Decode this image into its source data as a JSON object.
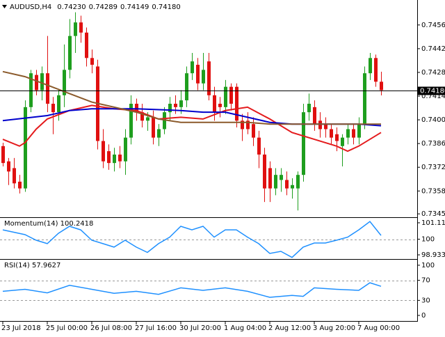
{
  "chart_data": [
    {
      "type": "candlestick",
      "title": "AUDUSD,H4",
      "quote": [
        {
          "value": 0.7423,
          "label": "0.74230"
        },
        {
          "value": 0.74289,
          "label": "0.74289"
        },
        {
          "value": 0.74149,
          "label": "0.74149"
        },
        {
          "value": 0.7418,
          "label": "0.74180"
        }
      ],
      "current": {
        "value": 0.7418,
        "label": "0.74180"
      },
      "xlim": [
        -0.5,
        74.5
      ],
      "xticks": [
        {
          "value": 0,
          "label": "23 Jul 2018"
        },
        {
          "value": 8,
          "label": "25 Jul 00:00"
        },
        {
          "value": 16,
          "label": "26 Jul 08:00"
        },
        {
          "value": 24,
          "label": "27 Jul 16:00"
        },
        {
          "value": 32,
          "label": "30 Jul 20:00"
        },
        {
          "value": 40,
          "label": "1 Aug 04:00"
        },
        {
          "value": 48,
          "label": "2 Aug 12:00"
        },
        {
          "value": 56,
          "label": "3 Aug 20:00"
        },
        {
          "value": 64,
          "label": "7 Aug 00:00"
        }
      ],
      "ylim": [
        0.7343,
        0.747
      ],
      "yticks": [
        0.74565,
        0.74425,
        0.74285,
        0.74145,
        0.74005,
        0.73865,
        0.73725,
        0.73585,
        {
          "value": 0.7345,
          "label": "0.73450"
        }
      ],
      "up_color": "#1e9e1e",
      "down_color": "#e01010",
      "open": [
        0.7385,
        0.7376,
        0.7372,
        0.7364,
        0.736,
        0.7408,
        0.7427,
        0.7418,
        0.7428,
        0.741,
        0.7405,
        0.7415,
        0.743,
        0.745,
        0.7458,
        0.7452,
        0.7437,
        0.7432,
        0.7388,
        0.7382,
        0.7375,
        0.738,
        0.7376,
        0.739,
        0.741,
        0.7405,
        0.74,
        0.7402,
        0.739,
        0.7395,
        0.7405,
        0.741,
        0.7408,
        0.7412,
        0.7428,
        0.7433,
        0.7422,
        0.7435,
        0.7415,
        0.741,
        0.7408,
        0.742,
        0.742,
        0.74,
        0.74,
        0.7398,
        0.739,
        0.738,
        0.7372,
        0.736,
        0.7365,
        0.7365,
        0.736,
        0.736,
        0.7368,
        0.7405,
        0.7408,
        0.74,
        0.7398,
        0.7395,
        0.7392,
        0.7385,
        0.739,
        0.7395,
        0.739,
        0.7398,
        0.7428,
        0.7437,
        0.7423
      ],
      "high": [
        0.7387,
        0.7378,
        0.7378,
        0.7368,
        0.7412,
        0.743,
        0.743,
        0.7432,
        0.745,
        0.7414,
        0.7418,
        0.7445,
        0.746,
        0.7464,
        0.7462,
        0.7455,
        0.7442,
        0.7436,
        0.7395,
        0.7386,
        0.7384,
        0.7385,
        0.7395,
        0.7415,
        0.7413,
        0.741,
        0.7405,
        0.7406,
        0.7398,
        0.7408,
        0.7414,
        0.7415,
        0.7418,
        0.7432,
        0.744,
        0.7437,
        0.744,
        0.744,
        0.742,
        0.7414,
        0.7424,
        0.7422,
        0.7422,
        0.7404,
        0.7405,
        0.7402,
        0.7394,
        0.7384,
        0.7376,
        0.7372,
        0.7372,
        0.737,
        0.7366,
        0.737,
        0.741,
        0.7416,
        0.7412,
        0.7405,
        0.7402,
        0.7398,
        0.7396,
        0.7392,
        0.7398,
        0.7398,
        0.7402,
        0.7432,
        0.744,
        0.7439,
        0.74289
      ],
      "low": [
        0.7373,
        0.7362,
        0.736,
        0.7357,
        0.7358,
        0.7405,
        0.7415,
        0.7412,
        0.7405,
        0.7392,
        0.74,
        0.7408,
        0.7425,
        0.744,
        0.7446,
        0.7432,
        0.7428,
        0.7383,
        0.7372,
        0.7371,
        0.737,
        0.7372,
        0.7368,
        0.7386,
        0.74,
        0.7396,
        0.7394,
        0.7386,
        0.7385,
        0.7392,
        0.74,
        0.7404,
        0.7404,
        0.7408,
        0.7424,
        0.7418,
        0.7418,
        0.7412,
        0.74,
        0.7402,
        0.7404,
        0.7406,
        0.7396,
        0.7388,
        0.7392,
        0.7385,
        0.7372,
        0.7352,
        0.7352,
        0.7356,
        0.7358,
        0.7356,
        0.7354,
        0.7347,
        0.7364,
        0.74,
        0.7394,
        0.739,
        0.739,
        0.7386,
        0.7382,
        0.7373,
        0.7386,
        0.7386,
        0.7386,
        0.7395,
        0.7424,
        0.742,
        0.74149
      ],
      "close": [
        0.7375,
        0.737,
        0.7363,
        0.736,
        0.7408,
        0.7428,
        0.7418,
        0.7428,
        0.741,
        0.7405,
        0.7415,
        0.743,
        0.745,
        0.7458,
        0.7452,
        0.7437,
        0.7433,
        0.7388,
        0.7376,
        0.7375,
        0.738,
        0.7376,
        0.739,
        0.741,
        0.7405,
        0.74,
        0.7402,
        0.739,
        0.7395,
        0.7405,
        0.741,
        0.7408,
        0.7412,
        0.7428,
        0.7435,
        0.7422,
        0.743,
        0.7415,
        0.7405,
        0.7408,
        0.742,
        0.741,
        0.74,
        0.7395,
        0.7395,
        0.739,
        0.738,
        0.736,
        0.736,
        0.7368,
        0.7368,
        0.736,
        0.7362,
        0.7368,
        0.7405,
        0.741,
        0.7398,
        0.7395,
        0.7395,
        0.739,
        0.7388,
        0.739,
        0.7395,
        0.739,
        0.7398,
        0.7428,
        0.7437,
        0.7423,
        0.7418
      ],
      "series": [
        {
          "color": "#e41a1c",
          "x": [
            0,
            3,
            4,
            6,
            8,
            12,
            16,
            20,
            24,
            28,
            32,
            36,
            40,
            44,
            48,
            52,
            56,
            60,
            62,
            64,
            68
          ],
          "values": [
            0.7389,
            0.7385,
            0.7387,
            0.7395,
            0.7401,
            0.7406,
            0.7409,
            0.7407,
            0.7406,
            0.7401,
            0.7402,
            0.7401,
            0.7406,
            0.7408,
            0.7401,
            0.7393,
            0.7389,
            0.7385,
            0.7382,
            0.7385,
            0.7393
          ]
        },
        {
          "color": "#0000cc",
          "x": [
            0,
            8,
            12,
            16,
            24,
            32,
            36,
            40,
            44,
            48,
            52,
            56,
            60,
            64,
            68
          ],
          "values": [
            0.74,
            0.7403,
            0.7406,
            0.7407,
            0.7407,
            0.7406,
            0.7405,
            0.7405,
            0.7402,
            0.7399,
            0.7398,
            0.7398,
            0.7398,
            0.7398,
            0.7397
          ]
        },
        {
          "color": "#8b5a2b",
          "x": [
            0,
            4,
            8,
            12,
            16,
            20,
            24,
            28,
            32,
            36,
            40,
            44,
            48,
            52,
            56,
            60,
            64,
            68
          ],
          "values": [
            0.7429,
            0.7426,
            0.7421,
            0.7416,
            0.7411,
            0.7408,
            0.7405,
            0.7401,
            0.7399,
            0.7399,
            0.7399,
            0.7399,
            0.7398,
            0.7398,
            0.7398,
            0.7398,
            0.7398,
            0.7398
          ]
        }
      ]
    },
    {
      "type": "line",
      "title": "Momentum(14) 100.2418",
      "xlim": [
        -0.5,
        74.5
      ],
      "ylim": [
        98.65,
        101.45
      ],
      "yticks": [
        101.1196,
        100,
        98.9338
      ],
      "levels": [
        100
      ],
      "series": [
        {
          "color": "#1e90ff",
          "x": [
            0,
            4,
            6,
            8,
            10,
            12,
            14,
            16,
            18,
            20,
            22,
            24,
            26,
            28,
            30,
            32,
            34,
            36,
            38,
            40,
            42,
            44,
            46,
            48,
            50,
            52,
            54,
            56,
            58,
            60,
            62,
            64,
            66,
            68
          ],
          "values": [
            100.64,
            100.31,
            99.93,
            99.7,
            100.4,
            100.88,
            100.64,
            99.93,
            99.7,
            99.46,
            99.93,
            99.46,
            99.1,
            99.7,
            100.14,
            100.88,
            100.64,
            100.88,
            100.14,
            100.64,
            100.64,
            100.14,
            99.7,
            99.03,
            99.17,
            98.76,
            99.46,
            99.74,
            99.74,
            99.93,
            100.14,
            100.64,
            101.21,
            100.26
          ]
        }
      ]
    },
    {
      "type": "line",
      "title": "RSI(14) 57.9627",
      "xlim": [
        -0.5,
        74.5
      ],
      "ylim": [
        -12.5,
        111
      ],
      "yticks": [
        100,
        70,
        30,
        0
      ],
      "levels": [
        70,
        30
      ],
      "series": [
        {
          "color": "#1e90ff",
          "x": [
            0,
            4,
            8,
            12,
            16,
            20,
            24,
            28,
            32,
            36,
            40,
            44,
            48,
            52,
            54,
            56,
            60,
            64,
            66,
            68
          ],
          "values": [
            48,
            52,
            45,
            60,
            52,
            44,
            48,
            42,
            55,
            50,
            55,
            48,
            36,
            40,
            38,
            55,
            52,
            50,
            65,
            58
          ]
        }
      ]
    }
  ]
}
